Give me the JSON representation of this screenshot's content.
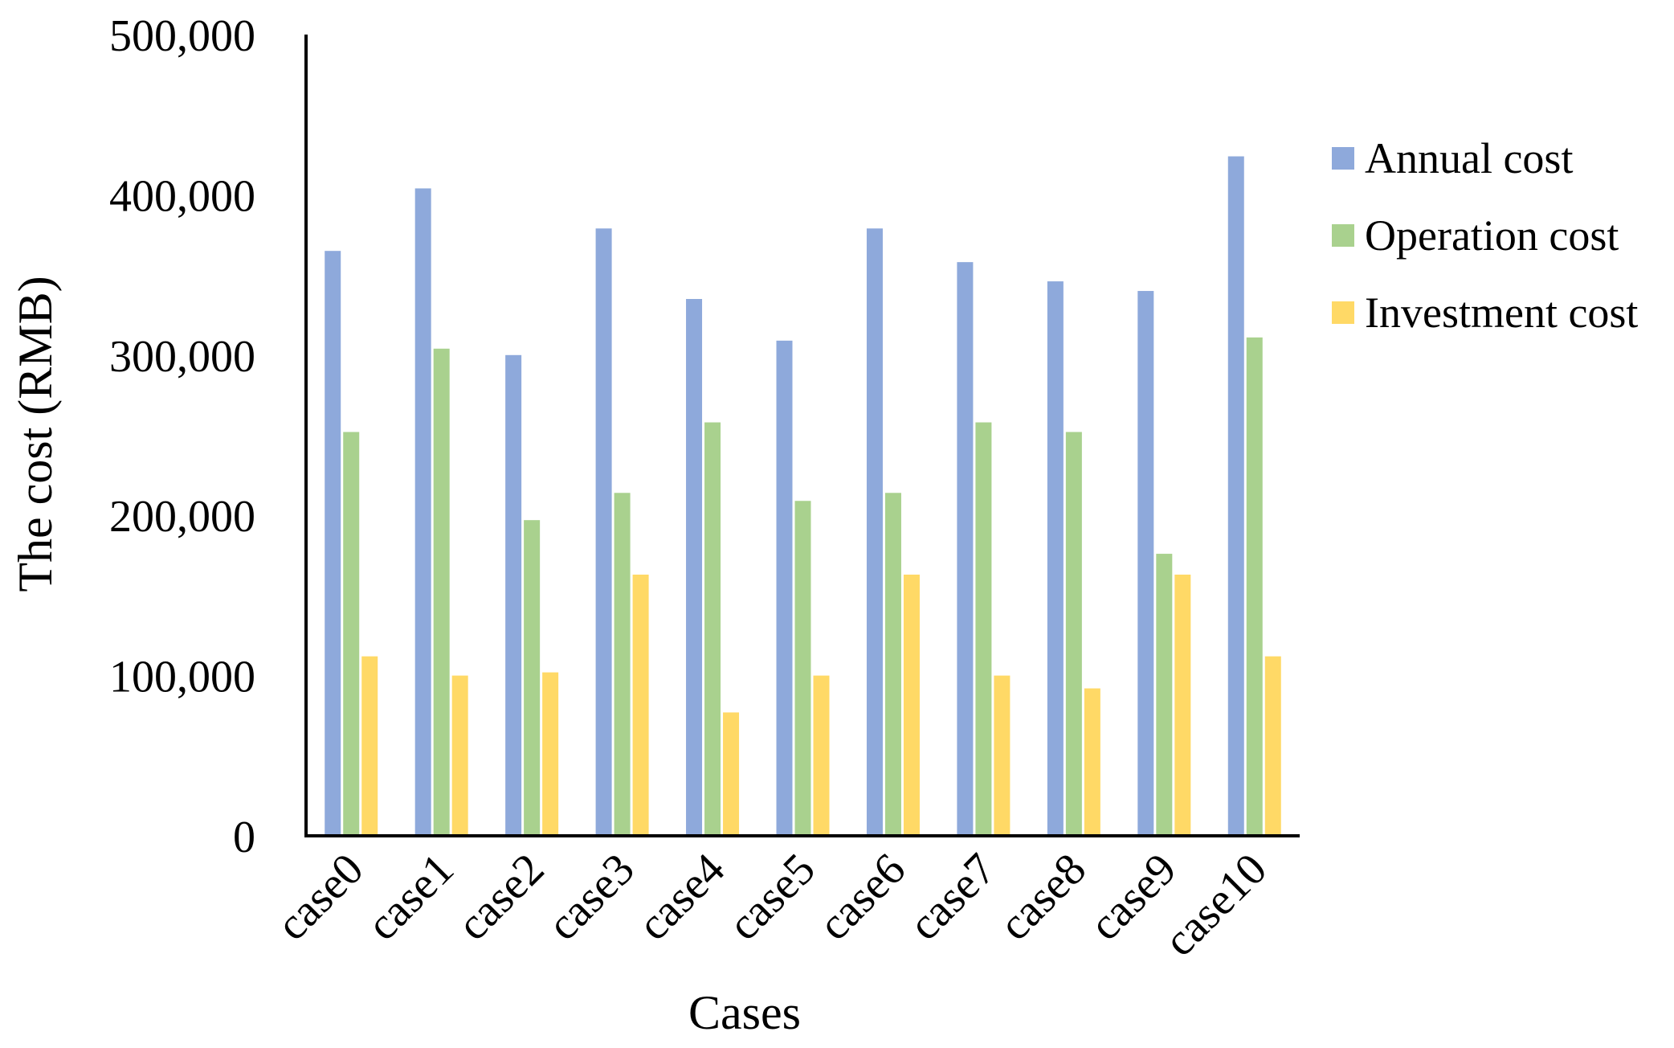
{
  "chart_data": {
    "type": "bar",
    "title": "",
    "xlabel": "Cases",
    "ylabel": "The cost (RMB)",
    "ylim": [
      0,
      500000
    ],
    "yticks": [
      0,
      100000,
      200000,
      300000,
      400000,
      500000
    ],
    "ytick_labels": [
      "0",
      "100,000",
      "200,000",
      "300,000",
      "400,000",
      "500,000"
    ],
    "grid": false,
    "legend_position": "right",
    "categories": [
      "case0",
      "case1",
      "case2",
      "case3",
      "case4",
      "case5",
      "case6",
      "case7",
      "case8",
      "case9",
      "case10"
    ],
    "series": [
      {
        "name": "Annual cost",
        "color": "#8EA9DB",
        "values": [
          365000,
          404000,
          300000,
          379000,
          335000,
          309000,
          379000,
          358000,
          346000,
          340000,
          424000
        ]
      },
      {
        "name": "Operation cost",
        "color": "#A9D18E",
        "values": [
          252000,
          304000,
          197000,
          214000,
          258000,
          209000,
          214000,
          258000,
          252000,
          176000,
          311000
        ]
      },
      {
        "name": "Investment cost",
        "color": "#FFD966",
        "values": [
          112000,
          100000,
          102000,
          163000,
          77000,
          100000,
          163000,
          100000,
          92000,
          163000,
          112000
        ]
      }
    ]
  }
}
